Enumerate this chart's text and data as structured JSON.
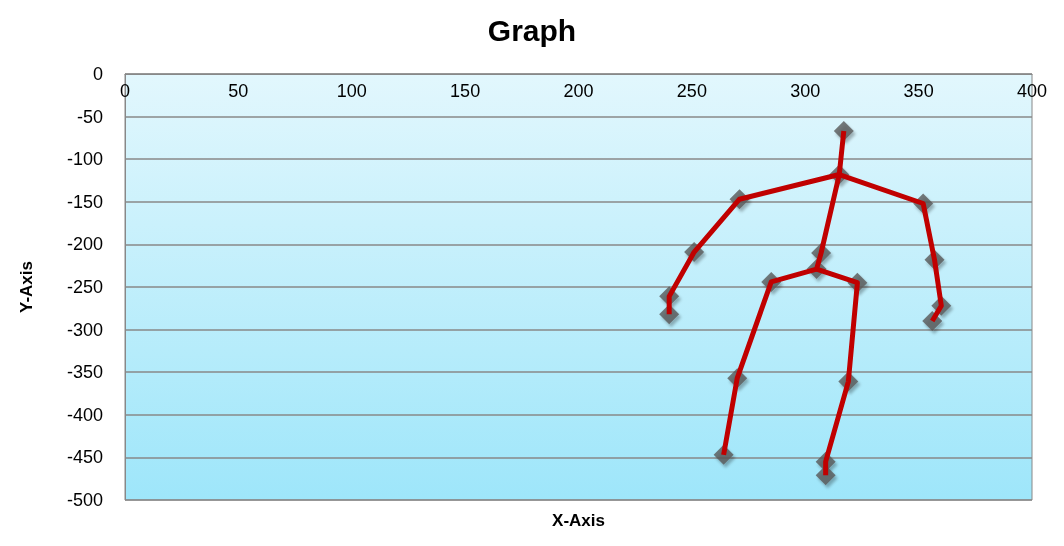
{
  "chart_data": {
    "type": "scatter",
    "title": "Graph",
    "xlabel": "X-Axis",
    "ylabel": "Y-Axis",
    "xlim": [
      0,
      400
    ],
    "xticks": [
      0,
      50,
      100,
      150,
      200,
      250,
      300,
      350,
      400
    ],
    "ylim": [
      -500,
      0
    ],
    "yticks": [
      0,
      -50,
      -100,
      -150,
      -200,
      -250,
      -300,
      -350,
      -400,
      -450,
      -500
    ],
    "grid": "y",
    "marker": "diamond",
    "series": [
      {
        "type": "line",
        "marker": "none",
        "color": "#c00000",
        "x": [
          317,
          315,
          307,
          305,
          285,
          270,
          264
        ],
        "values": [
          -67,
          -118,
          -210,
          -229,
          -244,
          -357,
          -447
        ]
      },
      {
        "type": "line",
        "marker": "none",
        "color": "#c00000",
        "x": [
          305,
          323,
          319,
          309,
          309
        ],
        "values": [
          -229,
          -245,
          -361,
          -455,
          -471
        ]
      },
      {
        "type": "line",
        "marker": "none",
        "color": "#c00000",
        "x": [
          240,
          240,
          251,
          271,
          315,
          352,
          357,
          360,
          356
        ],
        "values": [
          -282,
          -261,
          -209,
          -147,
          -118,
          -152,
          -218,
          -272,
          -290
        ]
      },
      {
        "color": "#595959",
        "x": [
          317,
          315,
          271,
          251,
          240,
          240,
          352,
          357,
          360,
          356,
          307,
          305,
          285,
          323,
          270,
          264,
          319,
          309,
          309
        ],
        "values": [
          -67,
          -118,
          -147,
          -209,
          -261,
          -282,
          -152,
          -218,
          -272,
          -290,
          -210,
          -229,
          -244,
          -245,
          -357,
          -447,
          -361,
          -455,
          -471
        ]
      }
    ]
  }
}
